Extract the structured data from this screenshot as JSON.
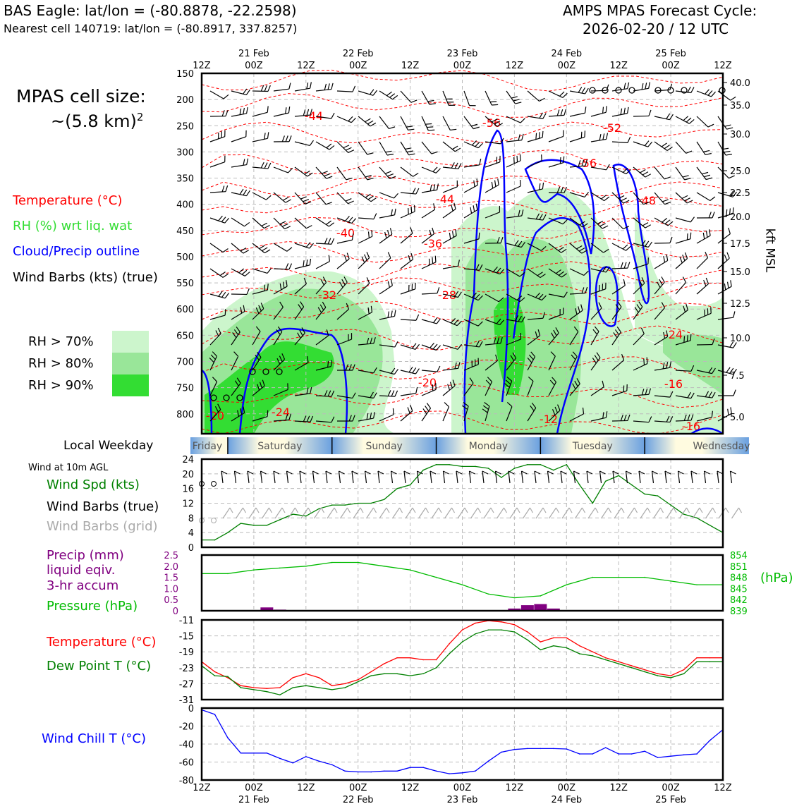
{
  "header": {
    "left_line1": "BAS Eagle: lat/lon = (-80.8878, -22.2598)",
    "left_line2": "Nearest cell 140719: lat/lon = (-80.8917, 337.8257)",
    "right_line1": "AMPS MPAS Forecast Cycle:",
    "right_line2": "2026-02-20 / 12 UTC"
  },
  "cell_size": {
    "line1": "MPAS cell size:",
    "line2": "~(5.8 km)",
    "sup": "2"
  },
  "legend_top": {
    "temp": "Temperature (°C)",
    "rh": "RH (%) wrt liq. wat",
    "cloud": "Cloud/Precip outline",
    "barbs": "Wind Barbs (kts) (true)"
  },
  "rh_legend": [
    {
      "label": "RH > 70%",
      "color": "#ccf5cc"
    },
    {
      "label": "RH > 80%",
      "color": "#99e699"
    },
    {
      "label": "RH > 90%",
      "color": "#33dd33"
    }
  ],
  "colors": {
    "temp": "#ff0000",
    "rh_text": "#33dd33",
    "cloud": "#0000ff",
    "wind": "#008000",
    "precip": "#800080",
    "pressure": "#00bb00",
    "dew": "#008000",
    "chill": "#0000ff",
    "grid_barbs": "#aaaaaa"
  },
  "time_axis": {
    "top_ticks": [
      "12Z",
      "00Z",
      "12Z",
      "00Z",
      "12Z",
      "00Z",
      "12Z",
      "00Z",
      "12Z",
      "00Z",
      "12Z"
    ],
    "dates": [
      "21 Feb",
      "22 Feb",
      "23 Feb",
      "24 Feb",
      "25 Feb"
    ]
  },
  "weekday": {
    "title": "Local Weekday",
    "days": [
      "Friday",
      "Saturday",
      "Sunday",
      "Monday",
      "Tuesday",
      "Wednesday"
    ]
  },
  "sounding": {
    "p_ticks": [
      "150",
      "200",
      "250",
      "300",
      "350",
      "400",
      "450",
      "500",
      "550",
      "600",
      "650",
      "700",
      "750",
      "800"
    ],
    "kft_ticks": [
      "40.0",
      "35.0",
      "30.0",
      "25.0",
      "22.5",
      "20.0",
      "17.5",
      "15.0",
      "12.5",
      "10.0",
      "7.5",
      "5.0"
    ],
    "right_label": "kft MSL",
    "temp_labels": [
      "-44",
      "-56",
      "-52",
      "-56",
      "-44",
      "-48",
      "-40",
      "-36",
      "-32",
      "-28",
      "-24",
      "-20",
      "-16",
      "-24",
      "-20",
      "-12",
      "-16"
    ]
  },
  "wind_panel": {
    "title": "Wind at 10m AGL",
    "spd_label": "Wind Spd (kts)",
    "barb_label": "Wind Barbs (true)",
    "grid_label": "Wind Barbs (grid)",
    "yticks": [
      "24",
      "20",
      "16",
      "12",
      "8",
      "4",
      "0"
    ]
  },
  "precip_panel": {
    "l1": "Precip (mm)",
    "l2": "liquid eqiv.",
    "l3": "3-hr accum",
    "pres_label": "Pressure (hPa)",
    "left_ticks": [
      "2.5",
      "2.0",
      "1.5",
      "1.0",
      "0.5",
      "0"
    ],
    "right_ticks": [
      "854",
      "851",
      "848",
      "845",
      "842",
      "839"
    ],
    "unit": "(hPa)"
  },
  "temp_panel": {
    "temp_label": "Temperature (°C)",
    "dew_label": "Dew Point T (°C)",
    "yticks": [
      "-11",
      "-15",
      "-19",
      "-23",
      "-27",
      "-31"
    ]
  },
  "chill_panel": {
    "label": "Wind Chill T (°C)",
    "yticks": [
      "0",
      "-20",
      "-40",
      "-60",
      "-80"
    ]
  },
  "chart_data": [
    {
      "type": "line",
      "title": "Wind at 10m AGL",
      "x": [
        0,
        3,
        6,
        9,
        12,
        15,
        18,
        21,
        24,
        27,
        30,
        33,
        36,
        39,
        42,
        45,
        48,
        51,
        54,
        57,
        60,
        63,
        66,
        69,
        72,
        75,
        78,
        81,
        84,
        87,
        90,
        93,
        96,
        99,
        102,
        105,
        108,
        111,
        114,
        117,
        120
      ],
      "series": [
        {
          "name": "Wind Spd (kts)",
          "values": [
            2,
            2,
            4,
            6.5,
            6,
            6,
            7.5,
            9,
            8.5,
            10.5,
            11.5,
            11.5,
            12,
            12,
            13,
            16,
            17,
            21,
            22.5,
            22.5,
            22,
            22,
            21.5,
            19,
            21.5,
            22.5,
            22.5,
            21,
            22.5,
            17,
            12,
            18,
            19.5,
            17,
            14.5,
            14,
            11.5,
            9,
            8,
            6,
            4
          ]
        }
      ],
      "ylim": [
        0,
        24
      ]
    },
    {
      "type": "bar",
      "title": "Precip (mm) liquid eqiv. 3-hr accum",
      "x": [
        0,
        3,
        6,
        9,
        12,
        15,
        18,
        21,
        24,
        27,
        30,
        33,
        36,
        39,
        42,
        45,
        48,
        51,
        54,
        57,
        60,
        63,
        66,
        69,
        72,
        75,
        78,
        81,
        84,
        87,
        90,
        93,
        96,
        99,
        102,
        105,
        108,
        111,
        114,
        117
      ],
      "values": [
        0,
        0,
        0,
        0,
        0,
        0.15,
        0.05,
        0,
        0,
        0,
        0,
        0,
        0,
        0,
        0,
        0,
        0,
        0,
        0,
        0,
        0,
        0,
        0,
        0,
        0.1,
        0.25,
        0.3,
        0.1,
        0,
        0,
        0,
        0,
        0,
        0,
        0,
        0,
        0,
        0,
        0,
        0
      ],
      "ylim": [
        0,
        2.5
      ]
    },
    {
      "type": "line",
      "title": "Pressure (hPa)",
      "x": [
        0,
        6,
        12,
        18,
        24,
        30,
        36,
        42,
        48,
        54,
        60,
        66,
        72,
        78,
        84,
        90,
        96,
        102,
        108,
        114,
        120
      ],
      "series": [
        {
          "name": "Pressure (hPa)",
          "values": [
            849,
            849,
            850,
            850.5,
            851,
            852,
            852,
            851,
            850,
            848,
            846,
            843.5,
            842.5,
            843,
            846,
            848,
            848,
            848,
            847,
            846,
            846
          ]
        }
      ],
      "ylim": [
        839,
        854
      ]
    },
    {
      "type": "line",
      "title": "Temperature / Dew Point",
      "x": [
        0,
        3,
        6,
        9,
        12,
        15,
        18,
        21,
        24,
        27,
        30,
        33,
        36,
        39,
        42,
        45,
        48,
        51,
        54,
        57,
        60,
        63,
        66,
        69,
        72,
        75,
        78,
        81,
        84,
        87,
        90,
        93,
        96,
        99,
        102,
        105,
        108,
        111,
        114,
        117,
        120
      ],
      "series": [
        {
          "name": "Temperature (°C)",
          "values": [
            -21.5,
            -24,
            -25.5,
            -27.5,
            -28,
            -28.2,
            -28,
            -25.5,
            -24.5,
            -25.5,
            -27.5,
            -27,
            -26,
            -24,
            -22,
            -20.5,
            -20.5,
            -21,
            -21,
            -17,
            -13.5,
            -11.8,
            -11.2,
            -11.5,
            -12.2,
            -14,
            -16.5,
            -15.5,
            -15.5,
            -17.5,
            -19,
            -20.5,
            -21.5,
            -22.5,
            -23.5,
            -24.5,
            -25,
            -23.5,
            -20.5,
            -20.5,
            -20.5
          ]
        },
        {
          "name": "Dew Point T (°C)",
          "values": [
            -22.5,
            -25,
            -25.2,
            -28,
            -28.5,
            -29,
            -29.8,
            -28,
            -27.5,
            -28,
            -28.5,
            -28,
            -26.5,
            -25,
            -24.5,
            -24.5,
            -25,
            -24.5,
            -23,
            -19.5,
            -16.5,
            -14.5,
            -13.5,
            -13.5,
            -14,
            -16,
            -18.5,
            -17.5,
            -18,
            -19.5,
            -20,
            -21,
            -22,
            -23,
            -24,
            -25,
            -25.5,
            -24.5,
            -21.5,
            -21.5,
            -21.5
          ]
        }
      ],
      "ylim": [
        -31,
        -11
      ]
    },
    {
      "type": "line",
      "title": "Wind Chill T (°C)",
      "x": [
        0,
        3,
        6,
        9,
        12,
        15,
        18,
        21,
        24,
        27,
        30,
        33,
        36,
        39,
        42,
        45,
        48,
        51,
        54,
        57,
        60,
        63,
        66,
        69,
        72,
        75,
        78,
        81,
        84,
        87,
        90,
        93,
        96,
        99,
        102,
        105,
        108,
        111,
        114,
        117,
        120
      ],
      "series": [
        {
          "name": "Wind Chill T (°C)",
          "values": [
            -2,
            -7,
            -33,
            -50,
            -50,
            -50,
            -56,
            -61,
            -54,
            -59,
            -63,
            -70,
            -71,
            -71,
            -70,
            -70,
            -66,
            -66,
            -70,
            -73,
            -72,
            -70,
            -59,
            -49,
            -46,
            -45,
            -45,
            -45,
            -45.5,
            -51,
            -51,
            -44,
            -51,
            -51,
            -48,
            -55,
            -53.5,
            -52,
            -51,
            -36,
            -24
          ]
        }
      ],
      "ylim": [
        -80,
        0
      ]
    }
  ]
}
